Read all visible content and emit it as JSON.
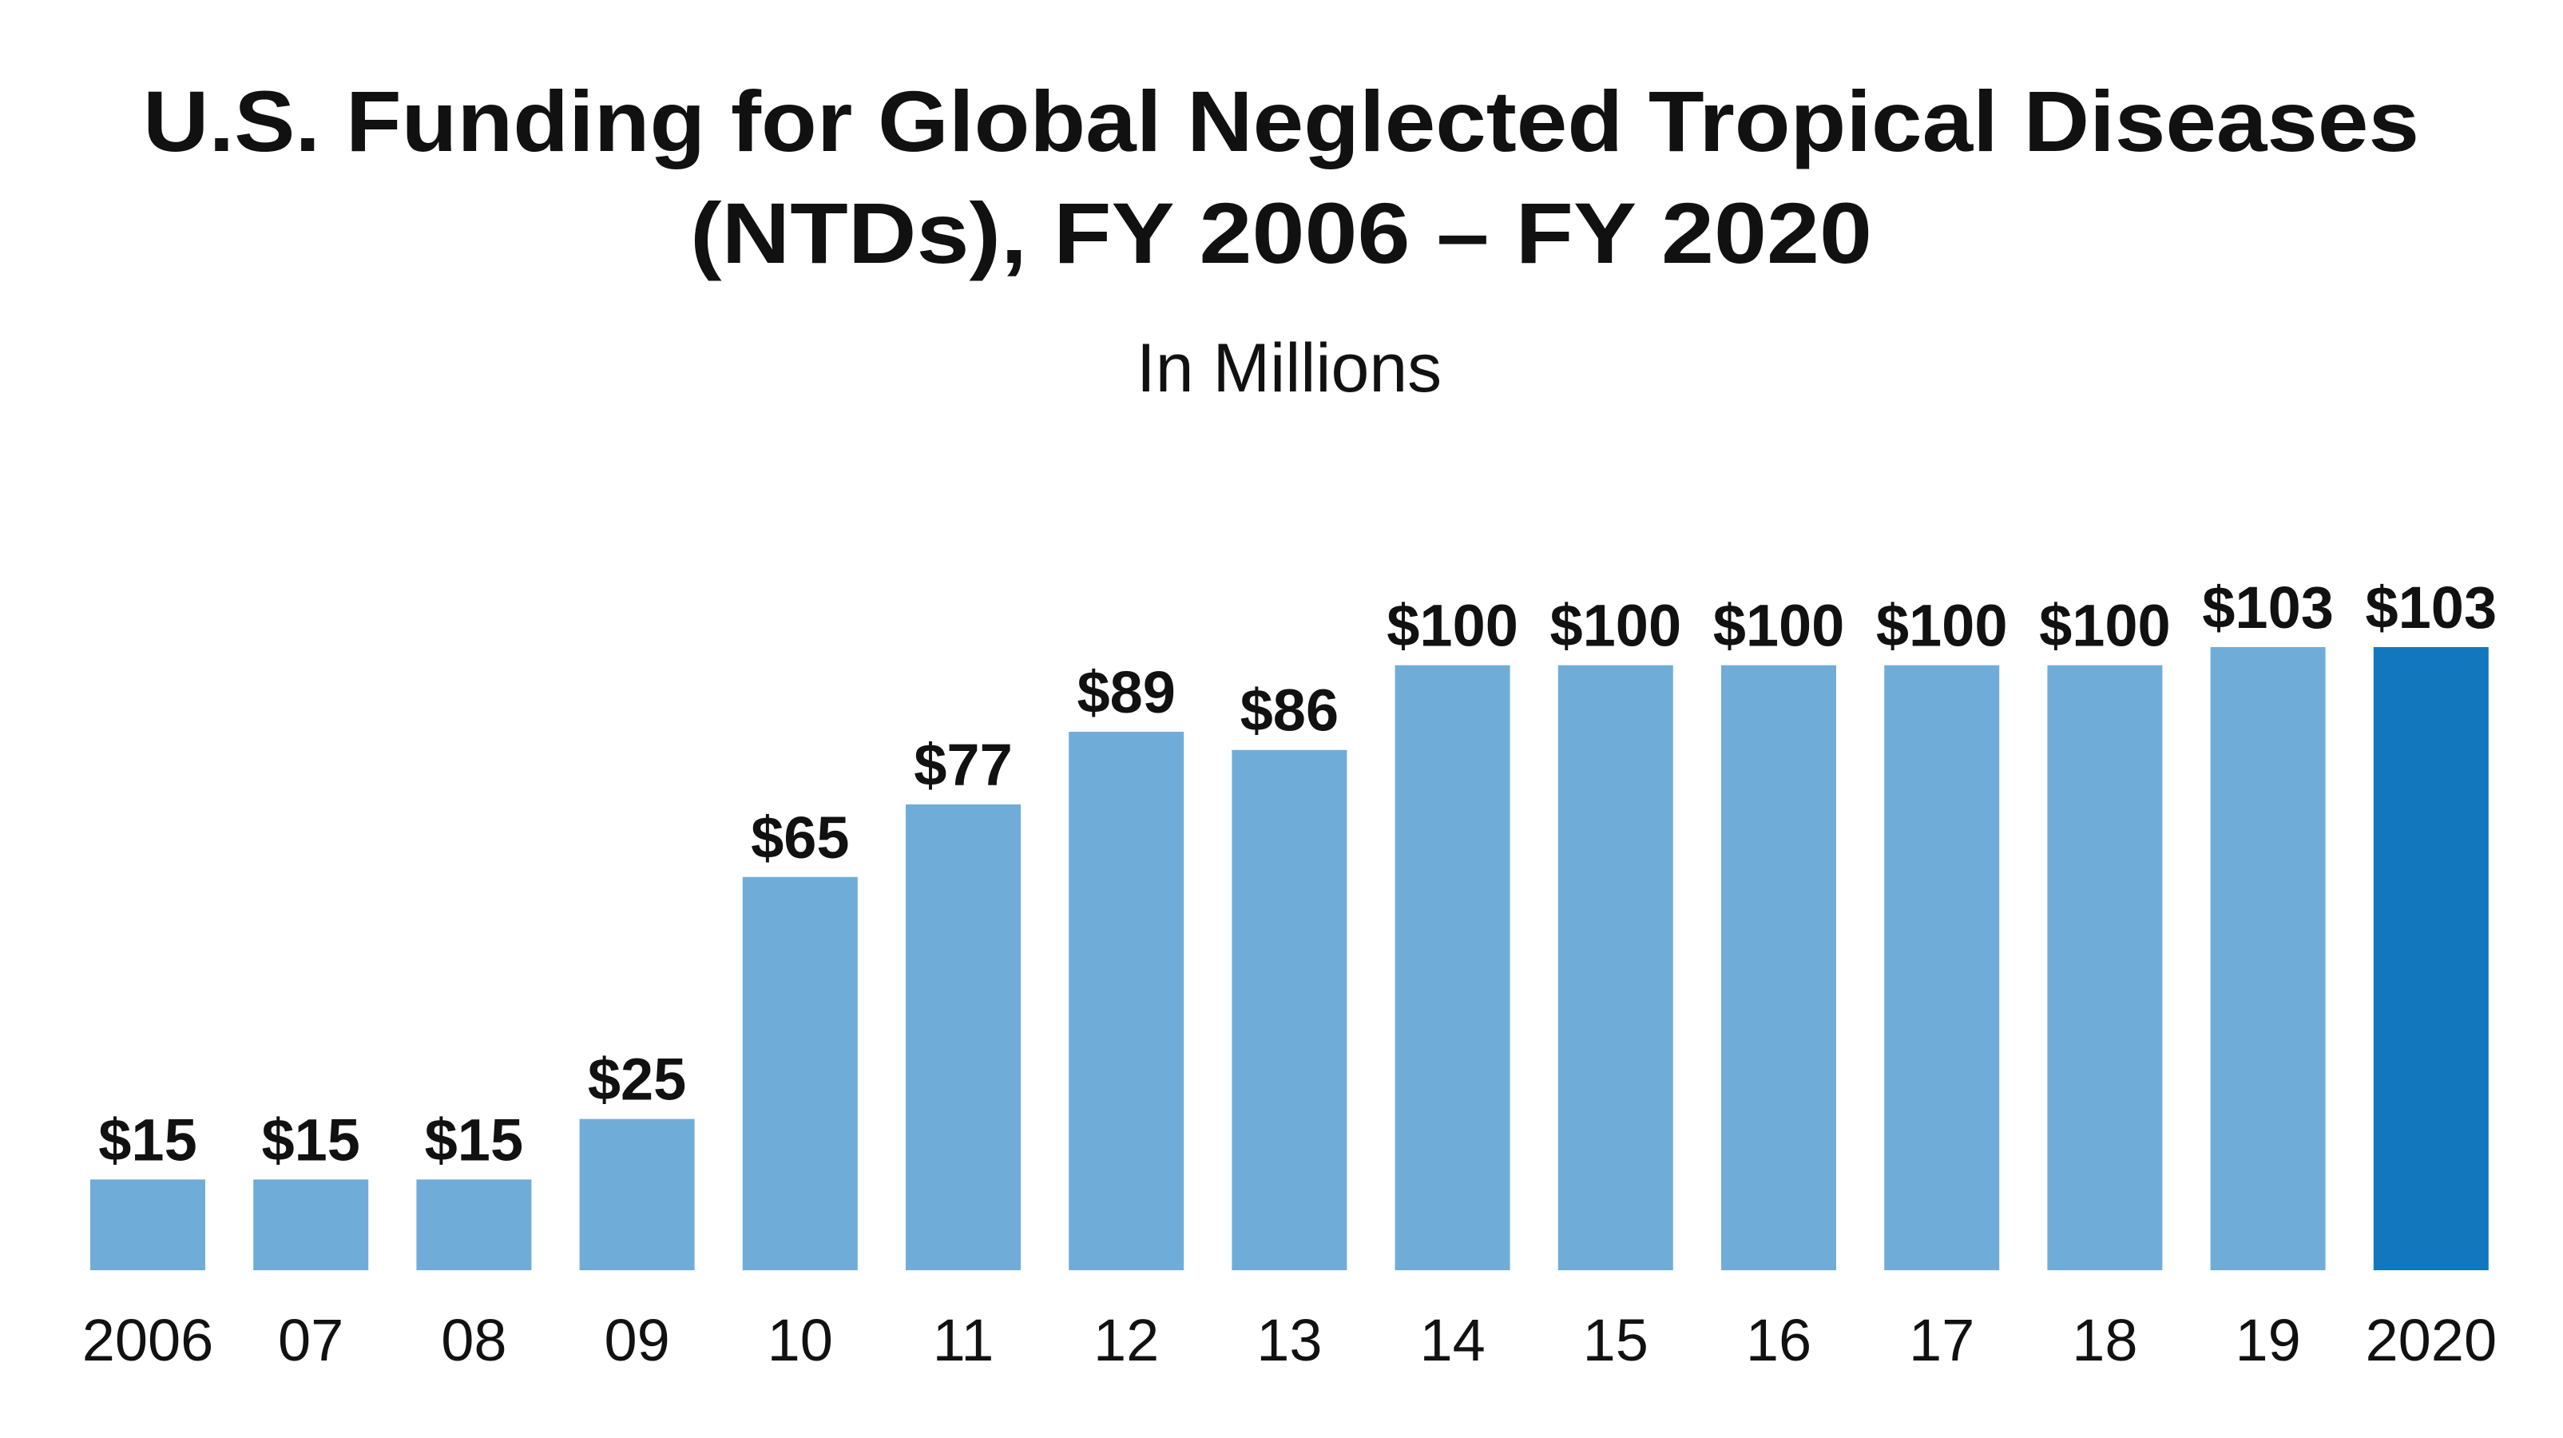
{
  "chart_data": {
    "type": "bar",
    "title": [
      "U.S. Funding for Global Neglected Tropical Diseases",
      "(NTDs), FY 2006 – FY 2020"
    ],
    "subtitle": "In Millions",
    "categories": [
      "2006",
      "07",
      "08",
      "09",
      "10",
      "11",
      "12",
      "13",
      "14",
      "15",
      "16",
      "17",
      "18",
      "19",
      "2020"
    ],
    "values": [
      15,
      15,
      15,
      25,
      65,
      77,
      89,
      86,
      100,
      100,
      100,
      100,
      100,
      103,
      103
    ],
    "value_labels": [
      "$15",
      "$15",
      "$15",
      "$25",
      "$65",
      "$77",
      "$89",
      "$86",
      "$100",
      "$100",
      "$100",
      "$100",
      "$100",
      "$103",
      "$103"
    ],
    "colors": [
      "#6fadd8",
      "#6fadd8",
      "#6fadd8",
      "#6fadd8",
      "#6fadd8",
      "#6fadd8",
      "#6fadd8",
      "#6fadd8",
      "#6fadd8",
      "#6fadd8",
      "#6fadd8",
      "#6fadd8",
      "#6fadd8",
      "#6fadd8",
      "#1277bd"
    ]
  }
}
